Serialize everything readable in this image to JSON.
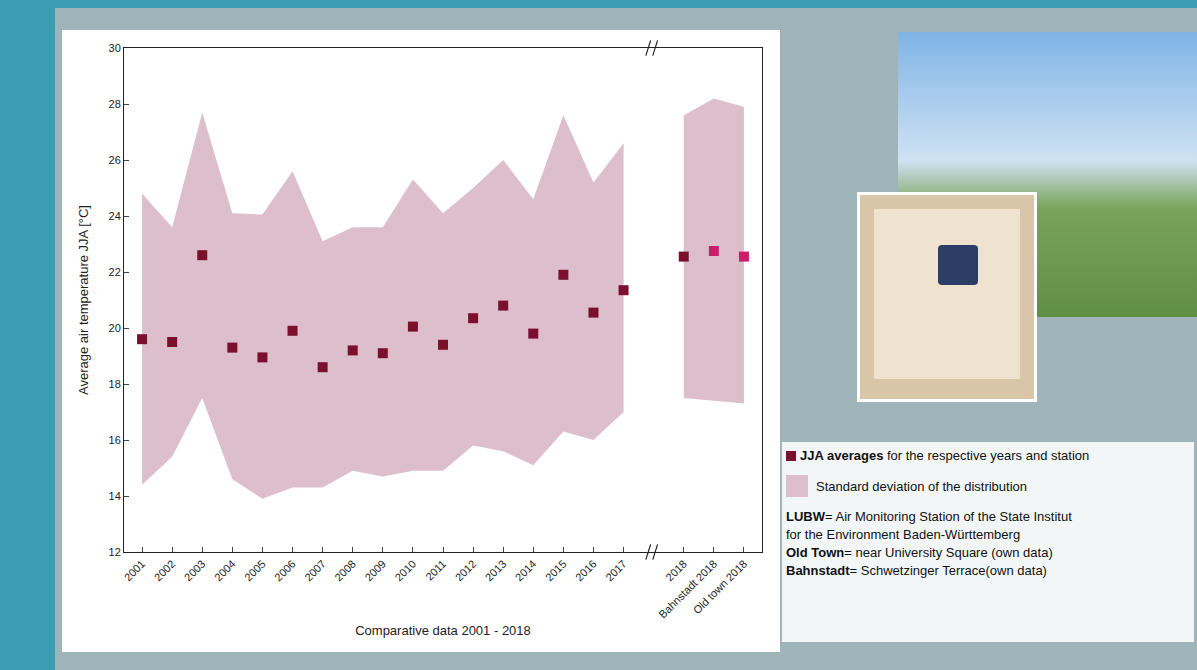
{
  "chart_data": {
    "type": "scatter",
    "x_label": "Comparative data 2001 - 2018",
    "y_label": "Average air temperature JJA [°C]",
    "categories": [
      "2001",
      "2002",
      "2003",
      "2004",
      "2005",
      "2006",
      "2007",
      "2008",
      "2009",
      "2010",
      "2011",
      "2012",
      "2013",
      "2014",
      "2015",
      "2016",
      "2017",
      null,
      "2018",
      "Bahnstadt 2018",
      "Old town 2018"
    ],
    "values": [
      19.6,
      19.5,
      22.6,
      19.3,
      18.95,
      19.9,
      18.6,
      19.2,
      19.1,
      20.05,
      19.4,
      20.35,
      20.8,
      19.8,
      21.9,
      20.55,
      21.35,
      null,
      22.55,
      22.75,
      22.55
    ],
    "band_upper": [
      24.8,
      23.6,
      27.7,
      24.1,
      24.05,
      25.6,
      23.1,
      23.6,
      23.6,
      25.3,
      24.1,
      25.0,
      26.0,
      24.6,
      27.6,
      25.2,
      26.6,
      null,
      27.6,
      28.2,
      27.9
    ],
    "band_lower": [
      14.4,
      15.4,
      17.5,
      14.6,
      13.9,
      14.3,
      14.3,
      14.9,
      14.7,
      14.9,
      14.9,
      15.8,
      15.6,
      15.1,
      16.3,
      16.0,
      17.0,
      null,
      17.5,
      17.4,
      17.3
    ],
    "colors": [
      "#7a0f2e",
      "#7a0f2e",
      "#7a0f2e",
      "#7a0f2e",
      "#7a0f2e",
      "#7a0f2e",
      "#7a0f2e",
      "#7a0f2e",
      "#7a0f2e",
      "#7a0f2e",
      "#7a0f2e",
      "#7a0f2e",
      "#7a0f2e",
      "#7a0f2e",
      "#7a0f2e",
      "#7a0f2e",
      "#7a0f2e",
      null,
      "#7a0f2e",
      "#cc1d6a",
      "#cc1d6a"
    ],
    "band_color": "#dcbfcb",
    "marker": "square",
    "ylim": [
      12,
      30
    ],
    "yticks": [
      12,
      14,
      16,
      18,
      20,
      22,
      24,
      26,
      28,
      30
    ],
    "grid": false
  },
  "legend_panel": {
    "items": [
      {
        "color": "#7a0f2e",
        "bold": "JJA averages",
        "text": " for the respective years and station"
      },
      {
        "color": "#dcbfcb",
        "text": "Standard deviation of the distribution"
      }
    ],
    "definitions": [
      {
        "term": "LUBW",
        "lines": [
          "= Air Monitoring Station of the State Institut",
          "for the Environment Baden-Württemberg"
        ]
      },
      {
        "term": "Old Town",
        "lines": [
          "= near University Square (own data)"
        ]
      },
      {
        "term": "Bahnstadt",
        "lines": [
          "= Schwetzinger Terrace(own data)"
        ]
      }
    ]
  }
}
